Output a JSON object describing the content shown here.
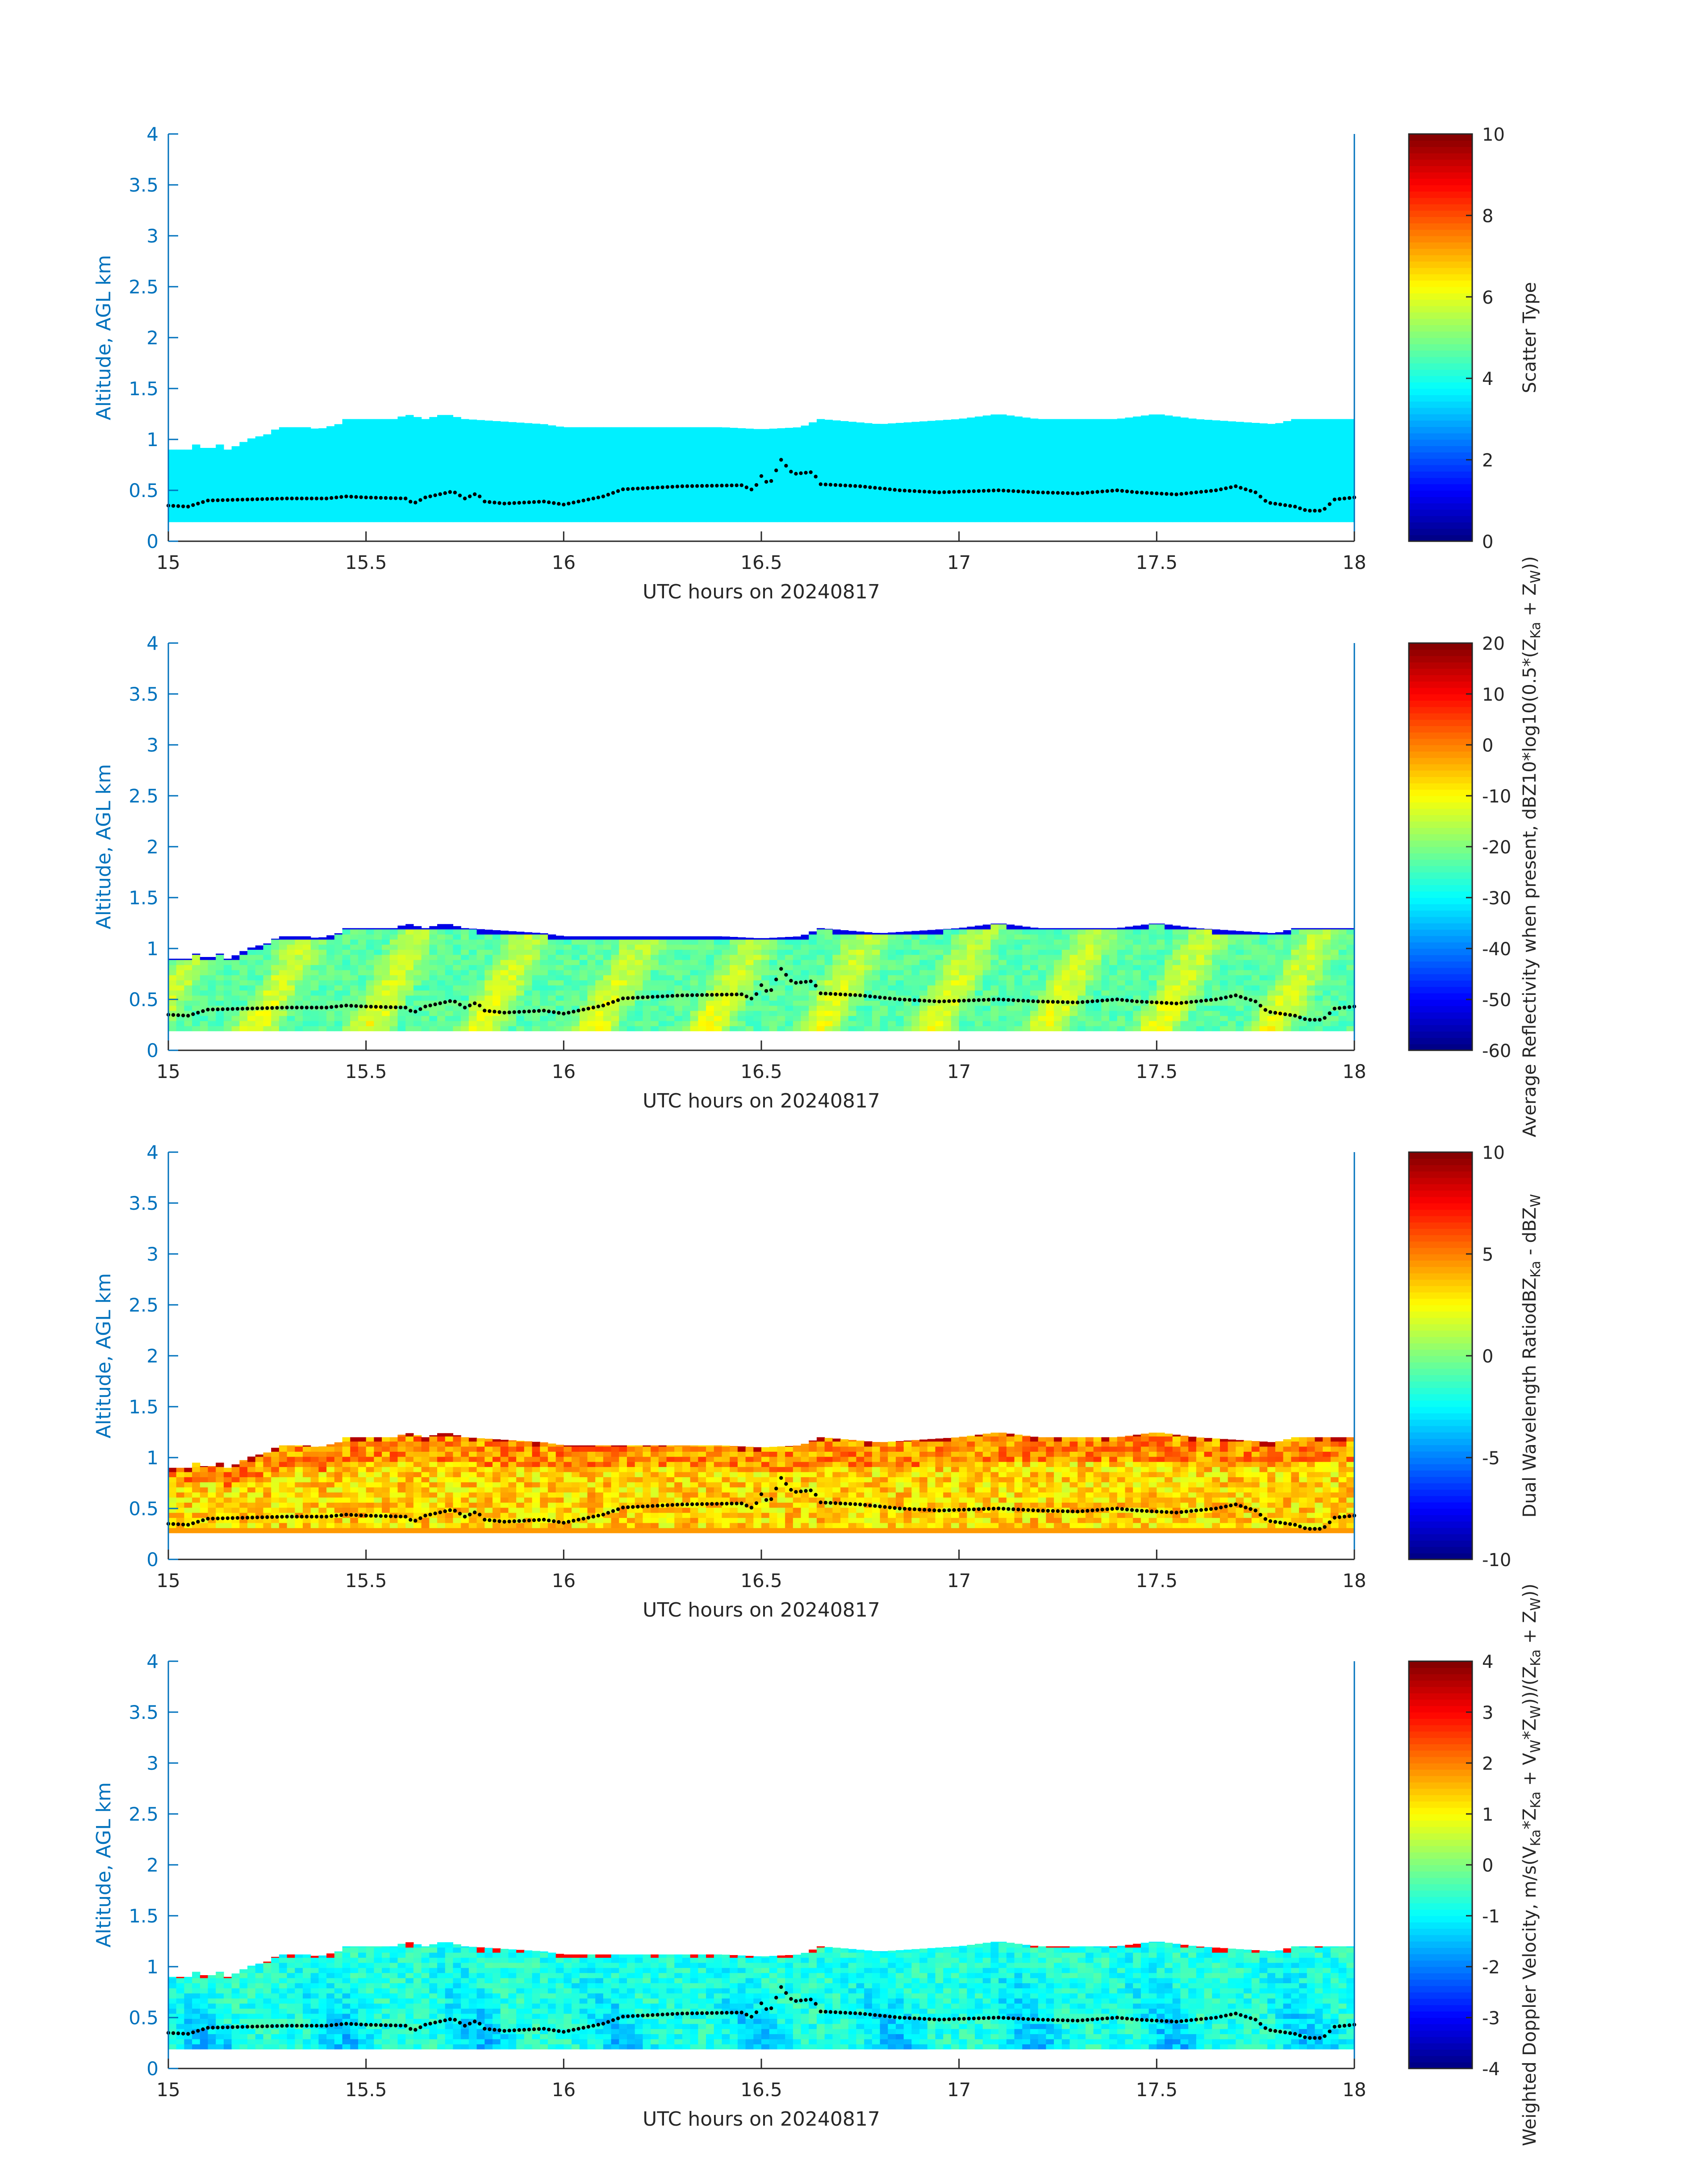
{
  "figure": {
    "xlabel": "UTC hours on 20240817",
    "ylabel": "Altitude, AGL km"
  },
  "chart_data": [
    {
      "type": "heatmap",
      "name": "scatter-type",
      "xlabel": "UTC hours on 20240817",
      "ylabel": "Altitude, AGL km",
      "xlim": [
        15,
        18
      ],
      "ylim": [
        0,
        4
      ],
      "xticks": [
        "15",
        "15.5",
        "16",
        "16.5",
        "17",
        "17.5",
        "18"
      ],
      "yticks": [
        "0",
        "0.5",
        "1",
        "1.5",
        "2",
        "2.5",
        "3",
        "3.5",
        "4"
      ],
      "colorbar": {
        "label_lines": [
          "Scatter Type"
        ],
        "range": [
          0,
          10
        ],
        "ticks": [
          "0",
          "2",
          "4",
          "6",
          "8",
          "10"
        ]
      },
      "field": {
        "base_km": 0.19,
        "mode": "constant",
        "value": 3.6
      }
    },
    {
      "type": "heatmap",
      "name": "reflectivity",
      "xlabel": "UTC hours on 20240817",
      "ylabel": "Altitude, AGL km",
      "xlim": [
        15,
        18
      ],
      "ylim": [
        0,
        4
      ],
      "xticks": [
        "15",
        "15.5",
        "16",
        "16.5",
        "17",
        "17.5",
        "18"
      ],
      "yticks": [
        "0",
        "0.5",
        "1",
        "1.5",
        "2",
        "2.5",
        "3",
        "3.5",
        "4"
      ],
      "colorbar": {
        "label_lines": [
          "Average Reflectivity when present, dBZ",
          "10*log10(0.5*(Z",
          "Ka",
          " + Z",
          "W",
          "))"
        ],
        "range": [
          -60,
          20
        ],
        "ticks": [
          "-60",
          "-50",
          "-40",
          "-30",
          "-20",
          "-10",
          "0",
          "10",
          "20"
        ]
      },
      "field": {
        "base_km": 0.19,
        "mode": "reflectivity",
        "value": -18
      }
    },
    {
      "type": "heatmap",
      "name": "dual-wavelength-ratio",
      "xlabel": "UTC hours on 20240817",
      "ylabel": "Altitude, AGL km",
      "xlim": [
        15,
        18
      ],
      "ylim": [
        0,
        4
      ],
      "xticks": [
        "15",
        "15.5",
        "16",
        "16.5",
        "17",
        "17.5",
        "18"
      ],
      "yticks": [
        "0",
        "0.5",
        "1",
        "1.5",
        "2",
        "2.5",
        "3",
        "3.5",
        "4"
      ],
      "colorbar": {
        "label_lines": [
          "Dual Wavelength Ratio",
          "dBZ",
          "Ka",
          " - dBZ",
          "W"
        ],
        "range": [
          -10,
          10
        ],
        "ticks": [
          "-10",
          "-5",
          "0",
          "5",
          "10"
        ]
      },
      "field": {
        "base_km": 0.26,
        "mode": "dwr",
        "value": 3
      }
    },
    {
      "type": "heatmap",
      "name": "doppler-velocity",
      "xlabel": "UTC hours on 20240817",
      "ylabel": "Altitude, AGL km",
      "xlim": [
        15,
        18
      ],
      "ylim": [
        0,
        4
      ],
      "xticks": [
        "15",
        "15.5",
        "16",
        "16.5",
        "17",
        "17.5",
        "18"
      ],
      "yticks": [
        "0",
        "0.5",
        "1",
        "1.5",
        "2",
        "2.5",
        "3",
        "3.5",
        "4"
      ],
      "colorbar": {
        "label_lines": [
          "Weighted Doppler Velocity, m/s",
          "(V",
          "Ka",
          "*Z",
          "Ka",
          " + V",
          "W",
          "*Z",
          "W",
          "))/(Z",
          "Ka",
          " + Z",
          "W",
          "))"
        ],
        "range": [
          -4,
          4
        ],
        "ticks": [
          "-4",
          "-3",
          "-2",
          "-1",
          "0",
          "1",
          "2",
          "3",
          "4"
        ]
      },
      "field": {
        "base_km": 0.19,
        "mode": "velocity",
        "value": -1.3
      }
    }
  ],
  "cloud_top_km": [
    [
      15.0,
      0.9
    ],
    [
      15.05,
      0.9
    ],
    [
      15.07,
      0.95
    ],
    [
      15.1,
      0.9
    ],
    [
      15.13,
      0.95
    ],
    [
      15.15,
      0.9
    ],
    [
      15.18,
      0.95
    ],
    [
      15.2,
      1.0
    ],
    [
      15.25,
      1.05
    ],
    [
      15.28,
      1.12
    ],
    [
      15.35,
      1.12
    ],
    [
      15.38,
      1.1
    ],
    [
      15.4,
      1.12
    ],
    [
      15.43,
      1.15
    ],
    [
      15.45,
      1.2
    ],
    [
      15.58,
      1.2
    ],
    [
      15.6,
      1.25
    ],
    [
      15.65,
      1.2
    ],
    [
      15.7,
      1.25
    ],
    [
      15.75,
      1.2
    ],
    [
      15.95,
      1.15
    ],
    [
      16.0,
      1.12
    ],
    [
      16.2,
      1.12
    ],
    [
      16.4,
      1.12
    ],
    [
      16.5,
      1.1
    ],
    [
      16.6,
      1.12
    ],
    [
      16.65,
      1.2
    ],
    [
      16.8,
      1.15
    ],
    [
      17.0,
      1.2
    ],
    [
      17.1,
      1.25
    ],
    [
      17.2,
      1.2
    ],
    [
      17.4,
      1.2
    ],
    [
      17.5,
      1.25
    ],
    [
      17.6,
      1.2
    ],
    [
      17.8,
      1.15
    ],
    [
      17.85,
      1.2
    ],
    [
      18.0,
      1.2
    ]
  ],
  "cloud_base_dots_km": [
    [
      15.0,
      0.35
    ],
    [
      15.05,
      0.34
    ],
    [
      15.1,
      0.4
    ],
    [
      15.2,
      0.41
    ],
    [
      15.3,
      0.42
    ],
    [
      15.4,
      0.42
    ],
    [
      15.45,
      0.44
    ],
    [
      15.5,
      0.43
    ],
    [
      15.6,
      0.42
    ],
    [
      15.62,
      0.37
    ],
    [
      15.65,
      0.43
    ],
    [
      15.72,
      0.49
    ],
    [
      15.75,
      0.42
    ],
    [
      15.78,
      0.47
    ],
    [
      15.8,
      0.39
    ],
    [
      15.85,
      0.37
    ],
    [
      15.95,
      0.39
    ],
    [
      16.0,
      0.36
    ],
    [
      16.1,
      0.44
    ],
    [
      16.15,
      0.51
    ],
    [
      16.3,
      0.54
    ],
    [
      16.45,
      0.55
    ],
    [
      16.48,
      0.5
    ],
    [
      16.5,
      0.64
    ],
    [
      16.52,
      0.55
    ],
    [
      16.55,
      0.8
    ],
    [
      16.58,
      0.66
    ],
    [
      16.63,
      0.68
    ],
    [
      16.65,
      0.56
    ],
    [
      16.75,
      0.54
    ],
    [
      16.85,
      0.5
    ],
    [
      16.95,
      0.48
    ],
    [
      17.1,
      0.5
    ],
    [
      17.2,
      0.48
    ],
    [
      17.3,
      0.47
    ],
    [
      17.4,
      0.5
    ],
    [
      17.45,
      0.48
    ],
    [
      17.55,
      0.46
    ],
    [
      17.65,
      0.5
    ],
    [
      17.7,
      0.54
    ],
    [
      17.75,
      0.48
    ],
    [
      17.78,
      0.38
    ],
    [
      17.85,
      0.34
    ],
    [
      17.88,
      0.3
    ],
    [
      17.92,
      0.3
    ],
    [
      17.95,
      0.41
    ],
    [
      18.0,
      0.43
    ]
  ]
}
